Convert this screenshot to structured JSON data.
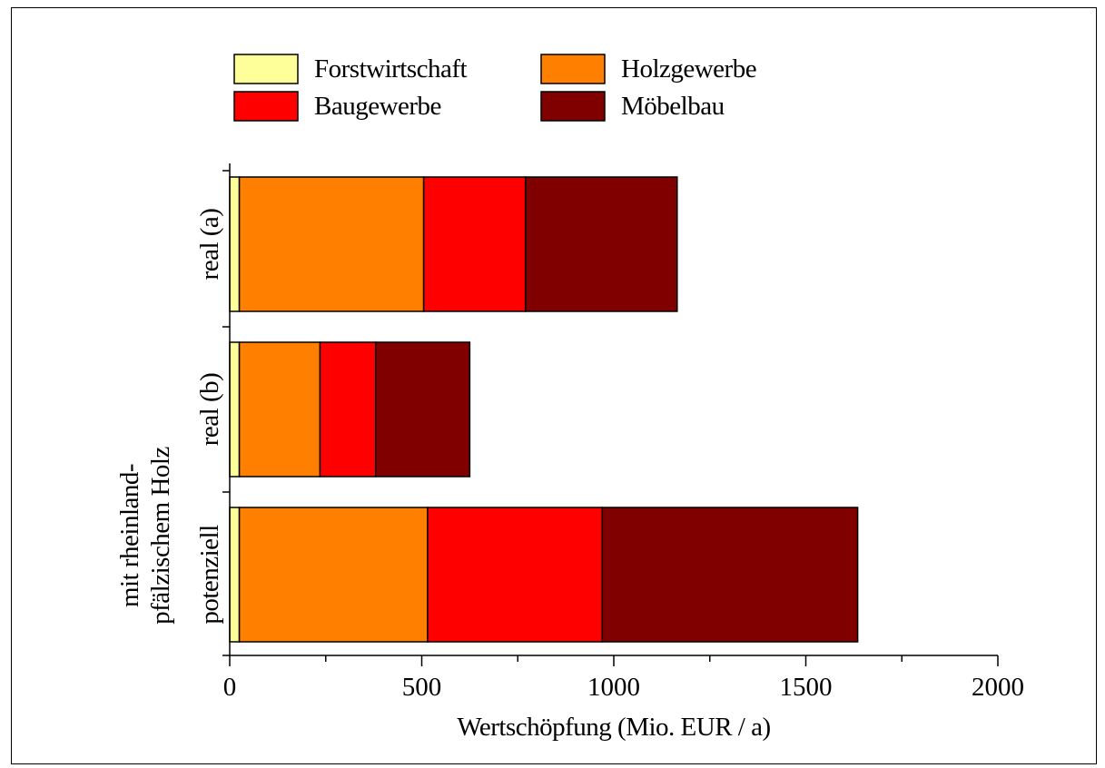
{
  "chart_data": {
    "type": "bar",
    "orientation": "horizontal",
    "stacked": true,
    "title": "",
    "xlabel": "Wertschöpfung (Mio. EUR / a)",
    "ylabel_lines": [
      "mit rheinland-",
      "pfälzischem Holz"
    ],
    "xlim": [
      0,
      2000
    ],
    "xticks": [
      0,
      500,
      1000,
      1500,
      2000
    ],
    "xtick_labels": [
      "0",
      "500",
      "1000",
      "1500",
      "2000"
    ],
    "categories": [
      "real (a)",
      "real (b)",
      "potenziell"
    ],
    "series": [
      {
        "name": "Forstwirtschaft",
        "color": "#ffff99",
        "values": [
          25,
          25,
          25
        ]
      },
      {
        "name": "Holzgewerbe",
        "color": "#ff8000",
        "values": [
          480,
          210,
          490
        ]
      },
      {
        "name": "Baugewerbe",
        "color": "#ff0000",
        "values": [
          265,
          145,
          455
        ]
      },
      {
        "name": "Möbelbau",
        "color": "#800000",
        "values": [
          395,
          245,
          665
        ]
      }
    ],
    "legend_position": "top",
    "grid": false
  }
}
